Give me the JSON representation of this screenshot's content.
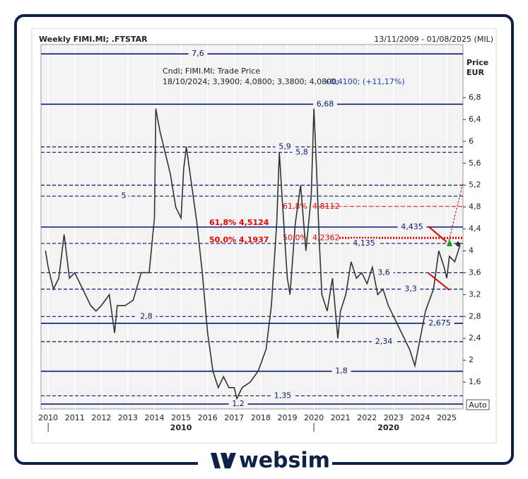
{
  "chart_data": {
    "type": "line",
    "title": "Weekly FIMI.MI; .FTSTAR",
    "date_range": "13/11/2009 - 01/08/2025 (MIL)",
    "ylabel": "Price",
    "yunit": "EUR",
    "info_date": "18/10/2024; 3,3900; 4,0800; 3,3800; 4,0800;",
    "info_change": "+0,4100; (+11,17%)",
    "auto_label": "Auto",
    "brand": "websim",
    "xlim": [
      2009.73,
      2025.61
    ],
    "ylim": [
      1.11,
      7.77
    ],
    "grid": true,
    "xticks": [
      2010,
      2011,
      2012,
      2013,
      2014,
      2015,
      2016,
      2017,
      2018,
      2019,
      2020,
      2021,
      2022,
      2023,
      2024,
      2025
    ],
    "decades": [
      2010,
      2020
    ],
    "yticks": [
      {
        "value": 1.6,
        "label": "1,6"
      },
      2,
      {
        "value": 2.4,
        "label": "2,4"
      },
      {
        "value": 2.8,
        "label": "2,8"
      },
      {
        "value": 3.2,
        "label": "3,2"
      },
      {
        "value": 3.6,
        "label": "3,6"
      },
      4,
      {
        "value": 4.4,
        "label": "4,4"
      },
      {
        "value": 4.8,
        "label": "4,8"
      },
      {
        "value": 5.2,
        "label": "5,2"
      },
      {
        "value": 5.6,
        "label": "5,6"
      },
      6,
      {
        "value": 6.4,
        "label": "6,4"
      },
      {
        "value": 6.8,
        "label": "6,8"
      }
    ],
    "series": [
      {
        "name": "Cndl; FIMI.MI; Trade Price",
        "color": "#333333",
        "x": [
          2009.9,
          2010.0,
          2010.2,
          2010.4,
          2010.6,
          2010.8,
          2011.0,
          2011.3,
          2011.6,
          2011.8,
          2012.0,
          2012.3,
          2012.5,
          2012.6,
          2012.9,
          2013.2,
          2013.5,
          2013.8,
          2014.0,
          2014.05,
          2014.2,
          2014.4,
          2014.6,
          2014.8,
          2015.0,
          2015.1,
          2015.2,
          2015.4,
          2015.6,
          2015.8,
          2016.0,
          2016.2,
          2016.4,
          2016.6,
          2016.8,
          2017.0,
          2017.1,
          2017.3,
          2017.6,
          2017.9,
          2018.2,
          2018.4,
          2018.6,
          2018.7,
          2018.8,
          2019.0,
          2019.1,
          2019.3,
          2019.5,
          2019.7,
          2019.9,
          2020.0,
          2020.1,
          2020.2,
          2020.3,
          2020.5,
          2020.7,
          2020.9,
          2021.0,
          2021.2,
          2021.4,
          2021.6,
          2021.8,
          2022.0,
          2022.2,
          2022.4,
          2022.6,
          2022.8,
          2023.0,
          2023.3,
          2023.6,
          2023.8,
          2024.0,
          2024.2,
          2024.5,
          2024.7,
          2024.9,
          2025.0,
          2025.1,
          2025.3,
          2025.5
        ],
        "values": [
          4.0,
          3.7,
          3.3,
          3.5,
          4.3,
          3.5,
          3.6,
          3.3,
          3.0,
          2.9,
          3.0,
          3.2,
          2.5,
          3.0,
          3.0,
          3.1,
          3.6,
          3.6,
          4.6,
          6.6,
          6.2,
          5.8,
          5.4,
          4.8,
          4.6,
          5.5,
          5.9,
          5.2,
          4.5,
          3.6,
          2.5,
          1.8,
          1.5,
          1.7,
          1.5,
          1.5,
          1.3,
          1.5,
          1.6,
          1.8,
          2.2,
          3.0,
          4.5,
          5.8,
          5.0,
          3.5,
          3.2,
          4.5,
          5.2,
          4.0,
          5.0,
          6.6,
          5.5,
          4.2,
          3.2,
          2.9,
          3.5,
          2.4,
          2.9,
          3.2,
          3.8,
          3.5,
          3.6,
          3.4,
          3.7,
          3.2,
          3.3,
          3.0,
          2.8,
          2.5,
          2.2,
          1.9,
          2.4,
          2.9,
          3.3,
          4.0,
          3.7,
          3.5,
          3.9,
          3.8,
          4.1
        ]
      }
    ],
    "levels": [
      {
        "value": 7.6,
        "label": "7,6",
        "style": "solid"
      },
      {
        "value": 6.68,
        "label": "6,68",
        "style": "solid"
      },
      {
        "value": 5.9,
        "label": "5,9",
        "style": "dashed"
      },
      {
        "value": 5.8,
        "label": "5,8",
        "style": "dashed"
      },
      {
        "value": 5.2,
        "label": null,
        "style": "dashed"
      },
      {
        "value": 5,
        "label": "5",
        "style": "dashed"
      },
      {
        "value": 4.435,
        "label": "4,435",
        "style": "solid"
      },
      {
        "value": 4.135,
        "label": "4,135",
        "style": "dashed"
      },
      {
        "value": 3.6,
        "label": "3,6",
        "style": "dashed"
      },
      {
        "value": 3.3,
        "label": "3,3",
        "style": "dashed"
      },
      {
        "value": 2.8,
        "label": "2,8",
        "style": "dashed"
      },
      {
        "value": 2.675,
        "label": "2,675",
        "style": "solid"
      },
      {
        "value": 2.34,
        "label": "2,34",
        "style": "dashed"
      },
      {
        "value": 1.8,
        "label": "1,8",
        "style": "solid"
      },
      {
        "value": 1.35,
        "label": "1,35",
        "style": "dashed"
      },
      {
        "value": 1.2,
        "label": "1,2",
        "style": "solid"
      }
    ],
    "fib_left": [
      {
        "value": 4.5124,
        "label": "61,8% 4,5124"
      },
      {
        "value": 4.1937,
        "label": "50,0% 4,1937"
      }
    ],
    "fib_right": [
      {
        "value": 4.8112,
        "pct": "61,8%",
        "label": "4,8112"
      },
      {
        "value": 4.2362,
        "pct": "50,0%",
        "label": "4,2362"
      }
    ]
  }
}
